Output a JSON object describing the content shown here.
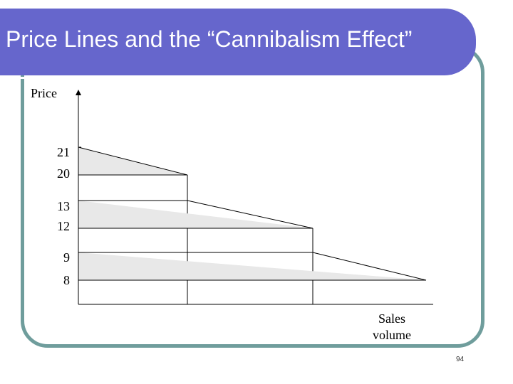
{
  "slide": {
    "title": "Price Lines and the “Cannibalism Effect”",
    "page_number": "94"
  },
  "chart_data": {
    "type": "area",
    "ylabel": "Price",
    "xlabel_lines": [
      "Sales",
      "volume"
    ],
    "tick_labels": [
      "21",
      "20",
      "13",
      "12",
      "9",
      "8"
    ],
    "price_lines": [
      {
        "high": 21,
        "low": 20
      },
      {
        "high": 13,
        "low": 12
      },
      {
        "high": 9,
        "low": 8
      }
    ]
  }
}
